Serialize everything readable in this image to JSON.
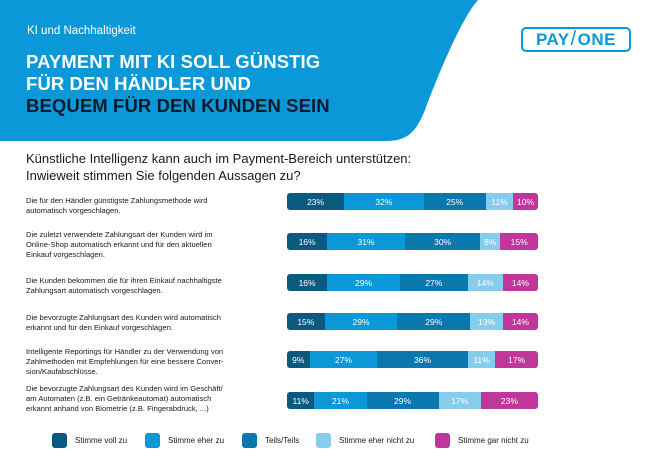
{
  "header": {
    "kicker": "KI und Nachhaltigkeit",
    "headline_line1": "PAYMENT MIT KI SOLL GÜNSTIG",
    "headline_line2": "FÜR DEN HÄNDLER UND",
    "headline_line3": "BEQUEM FÜR DEN KUNDEN SEIN",
    "logo_left": "PAY",
    "logo_slash": "/",
    "logo_right": "ONE",
    "banner_color": "#0b98d8"
  },
  "question": {
    "line1": "Künstliche Intelligenz kann auch im Payment-Bereich unterstützen:",
    "line2": "Inwieweit stimmen Sie folgenden Aussagen zu?"
  },
  "colors": {
    "stimme_voll_zu": "#0a5a80",
    "stimme_eher_zu": "#0b98d8",
    "teils_teils": "#0a78ad",
    "stimme_eher_nicht_zu": "#86ccec",
    "stimme_gar_nicht_zu": "#c0369a"
  },
  "legend": [
    {
      "label": "Stimme voll zu",
      "color": "#0a5a80"
    },
    {
      "label": "Stimme eher zu",
      "color": "#0b98d8"
    },
    {
      "label": "Teils/Teils",
      "color": "#0a78ad"
    },
    {
      "label": "Stimme eher nicht zu",
      "color": "#86ccec"
    },
    {
      "label": "Stimme gar nicht zu",
      "color": "#c0369a"
    }
  ],
  "rows": [
    {
      "label_lines": [
        "Die für den Händler günstigste Zahlungsmethode wird",
        "automatisch vorgeschlagen."
      ]
    },
    {
      "label_lines": [
        "Die zuletzt verwendete Zahlungsart der Kunden wird im",
        "Online-Shop automatisch erkannt und für den aktuellen",
        "Einkauf vorgeschlagen."
      ]
    },
    {
      "label_lines": [
        "Die Kunden bekommen die für ihren Einkauf nachhaltigste",
        "Zahlungsart automatisch vorgeschlagen."
      ]
    },
    {
      "label_lines": [
        "Die bevorzugte Zahlungsart des Kunden wird automatisch",
        "erkannt und für den Einkauf vorgeschlagen."
      ]
    },
    {
      "label_lines": [
        "Intelligente Reportings für Händler zu der Verwendung von",
        "Zahlmethoden mit Empfehlungen für eine bessere Conver-",
        "sion/Kaufabschlüsse."
      ]
    },
    {
      "label_lines": [
        "Die bevorzugte Zahlungsart des Kunden wird im Geschäft/",
        "am Automaten (z.B. ein Getränkeautomat) automatisch",
        "erkannt anhand von Biometrie (z.B. Fingerabdruck, ...)"
      ]
    }
  ],
  "chart_data": {
    "type": "bar",
    "orientation": "horizontal",
    "stacked": true,
    "percent_stacked": true,
    "title": "Künstliche Intelligenz kann auch im Payment-Bereich unterstützen: Inwieweit stimmen Sie folgenden Aussagen zu?",
    "categories": [
      "Die für den Händler günstigste Zahlungsmethode wird automatisch vorgeschlagen.",
      "Die zuletzt verwendete Zahlungsart der Kunden wird im Online-Shop automatisch erkannt und für den aktuellen Einkauf vorgeschlagen.",
      "Die Kunden bekommen die für ihren Einkauf nachhaltigste Zahlungsart automatisch vorgeschlagen.",
      "Die bevorzugte Zahlungsart des Kunden wird automatisch erkannt und für den Einkauf vorgeschlagen.",
      "Intelligente Reportings für Händler zu der Verwendung von Zahlmethoden mit Empfehlungen für eine bessere Conversion/Kaufabschlüsse.",
      "Die bevorzugte Zahlungsart des Kunden wird im Geschäft/am Automaten (z.B. ein Getränkeautomat) automatisch erkannt anhand von Biometrie (z.B. Fingerabdruck, ...)"
    ],
    "series": [
      {
        "name": "Stimme voll zu",
        "color": "#0a5a80",
        "values": [
          23,
          16,
          16,
          15,
          9,
          11
        ]
      },
      {
        "name": "Stimme eher zu",
        "color": "#0b98d8",
        "values": [
          32,
          31,
          29,
          29,
          27,
          21
        ]
      },
      {
        "name": "Teils/Teils",
        "color": "#0a78ad",
        "values": [
          25,
          30,
          27,
          29,
          36,
          29
        ]
      },
      {
        "name": "Stimme eher nicht zu",
        "color": "#86ccec",
        "values": [
          11,
          8,
          14,
          13,
          11,
          17
        ]
      },
      {
        "name": "Stimme gar nicht zu",
        "color": "#c0369a",
        "values": [
          10,
          15,
          14,
          14,
          17,
          23
        ]
      }
    ],
    "value_labels": true,
    "value_suffix": "%",
    "xlabel": "",
    "ylabel": "",
    "legend_position": "bottom",
    "grid": false
  }
}
